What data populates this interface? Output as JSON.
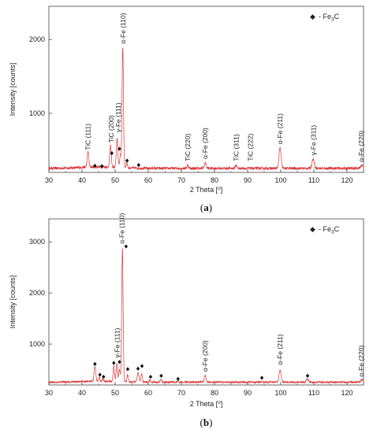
{
  "chart_data": [
    {
      "type": "line",
      "caption": "(a)",
      "xlabel": "2 Theta [",
      "xlabel_unit": "o",
      "xlabel_close": "]",
      "ylabel": "Intensity [counts]",
      "xlim": [
        30,
        125
      ],
      "ylim": [
        200,
        2450
      ],
      "x_ticks": [
        30,
        40,
        50,
        60,
        70,
        80,
        90,
        100,
        110,
        120
      ],
      "y_ticks": [
        1000,
        2000
      ],
      "legend": {
        "marker": "◆",
        "prefix": "- Fe",
        "sub": "3",
        "suffix": "C",
        "position": "top-right"
      },
      "line_color": "#d9383a",
      "baseline": 255,
      "peaks": [
        {
          "x": 41.8,
          "y": 470,
          "w": 0.35
        },
        {
          "x": 48.6,
          "y": 540,
          "w": 0.35
        },
        {
          "x": 50.6,
          "y": 640,
          "w": 0.35
        },
        {
          "x": 51.6,
          "y": 420,
          "w": 0.3
        },
        {
          "x": 52.3,
          "y": 1900,
          "w": 0.3
        },
        {
          "x": 53.5,
          "y": 330,
          "w": 0.3
        },
        {
          "x": 71.9,
          "y": 300,
          "w": 0.35
        },
        {
          "x": 77.2,
          "y": 330,
          "w": 0.4
        },
        {
          "x": 86.5,
          "y": 300,
          "w": 0.35
        },
        {
          "x": 99.8,
          "y": 530,
          "w": 0.45
        },
        {
          "x": 109.8,
          "y": 380,
          "w": 0.5
        },
        {
          "x": 124.5,
          "y": 300,
          "w": 0.5
        }
      ],
      "markers": [
        {
          "x": 43.9,
          "y": 290
        },
        {
          "x": 46.0,
          "y": 285
        },
        {
          "x": 49.0,
          "y": 460
        },
        {
          "x": 51.3,
          "y": 520
        },
        {
          "x": 53.6,
          "y": 360
        },
        {
          "x": 57.1,
          "y": 300
        }
      ],
      "annotations": [
        {
          "text": "TiC (111)",
          "x": 41.8,
          "y": 480
        },
        {
          "text": "TiC (200)",
          "x": 48.8,
          "y": 580
        },
        {
          "text": "γ-Fe (111)",
          "x": 50.9,
          "y": 720
        },
        {
          "text": "α-Fe (110)",
          "x": 52.4,
          "y": 1920
        },
        {
          "text": "TiC (220)",
          "x": 71.9,
          "y": 330
        },
        {
          "text": "α-Fe (200)",
          "x": 77.2,
          "y": 360
        },
        {
          "text": "TiC (311)",
          "x": 86.5,
          "y": 330
        },
        {
          "text": "TiC (222)",
          "x": 90.8,
          "y": 330
        },
        {
          "text": "α-Fe (211)",
          "x": 99.8,
          "y": 560
        },
        {
          "text": "γ-Fe (311)",
          "x": 109.9,
          "y": 410
        },
        {
          "text": "α-Fe (220)",
          "x": 124.3,
          "y": 320
        }
      ]
    },
    {
      "type": "line",
      "caption": "(b)",
      "xlabel": "2 Theta [",
      "xlabel_unit": "o",
      "xlabel_close": "]",
      "ylabel": "Intensity [counts]",
      "xlim": [
        30,
        125
      ],
      "ylim": [
        200,
        3450
      ],
      "x_ticks": [
        30,
        40,
        50,
        60,
        70,
        80,
        90,
        100,
        110,
        120
      ],
      "y_ticks": [
        1000,
        2000,
        3000
      ],
      "legend": {
        "marker": "◆",
        "prefix": "- Fe",
        "sub": "3",
        "suffix": "C",
        "position": "top-right"
      },
      "line_color": "#d9383a",
      "baseline": 255,
      "peaks": [
        {
          "x": 43.9,
          "y": 550,
          "w": 0.35
        },
        {
          "x": 45.2,
          "y": 330,
          "w": 0.3
        },
        {
          "x": 46.3,
          "y": 300,
          "w": 0.3
        },
        {
          "x": 49.6,
          "y": 550,
          "w": 0.3
        },
        {
          "x": 50.5,
          "y": 600,
          "w": 0.3
        },
        {
          "x": 51.3,
          "y": 500,
          "w": 0.3
        },
        {
          "x": 52.2,
          "y": 2850,
          "w": 0.3
        },
        {
          "x": 53.8,
          "y": 400,
          "w": 0.3
        },
        {
          "x": 56.9,
          "y": 450,
          "w": 0.35
        },
        {
          "x": 58.0,
          "y": 420,
          "w": 0.3
        },
        {
          "x": 60.5,
          "y": 300,
          "w": 0.3
        },
        {
          "x": 63.8,
          "y": 310,
          "w": 0.3
        },
        {
          "x": 69.0,
          "y": 290,
          "w": 0.3
        },
        {
          "x": 77.2,
          "y": 380,
          "w": 0.4
        },
        {
          "x": 99.8,
          "y": 490,
          "w": 0.45
        },
        {
          "x": 108.0,
          "y": 320,
          "w": 0.4
        },
        {
          "x": 124.5,
          "y": 300,
          "w": 0.5
        }
      ],
      "markers": [
        {
          "x": 43.9,
          "y": 610
        },
        {
          "x": 45.4,
          "y": 400
        },
        {
          "x": 46.5,
          "y": 360
        },
        {
          "x": 49.6,
          "y": 630
        },
        {
          "x": 51.3,
          "y": 650
        },
        {
          "x": 53.3,
          "y": 2910
        },
        {
          "x": 53.8,
          "y": 510
        },
        {
          "x": 56.9,
          "y": 520
        },
        {
          "x": 58.1,
          "y": 570
        },
        {
          "x": 60.7,
          "y": 360
        },
        {
          "x": 63.9,
          "y": 380
        },
        {
          "x": 69.0,
          "y": 320
        },
        {
          "x": 94.3,
          "y": 340
        },
        {
          "x": 108.1,
          "y": 380
        }
      ],
      "annotations": [
        {
          "text": "γ-Fe (111)",
          "x": 50.6,
          "y": 700
        },
        {
          "text": "α-Fe (110)",
          "x": 52.0,
          "y": 2930
        },
        {
          "text": "α-Fe (200)",
          "x": 77.2,
          "y": 430
        },
        {
          "text": "α-Fe (211)",
          "x": 99.8,
          "y": 560
        },
        {
          "text": "α-Fe (220)",
          "x": 124.3,
          "y": 330
        }
      ]
    }
  ]
}
